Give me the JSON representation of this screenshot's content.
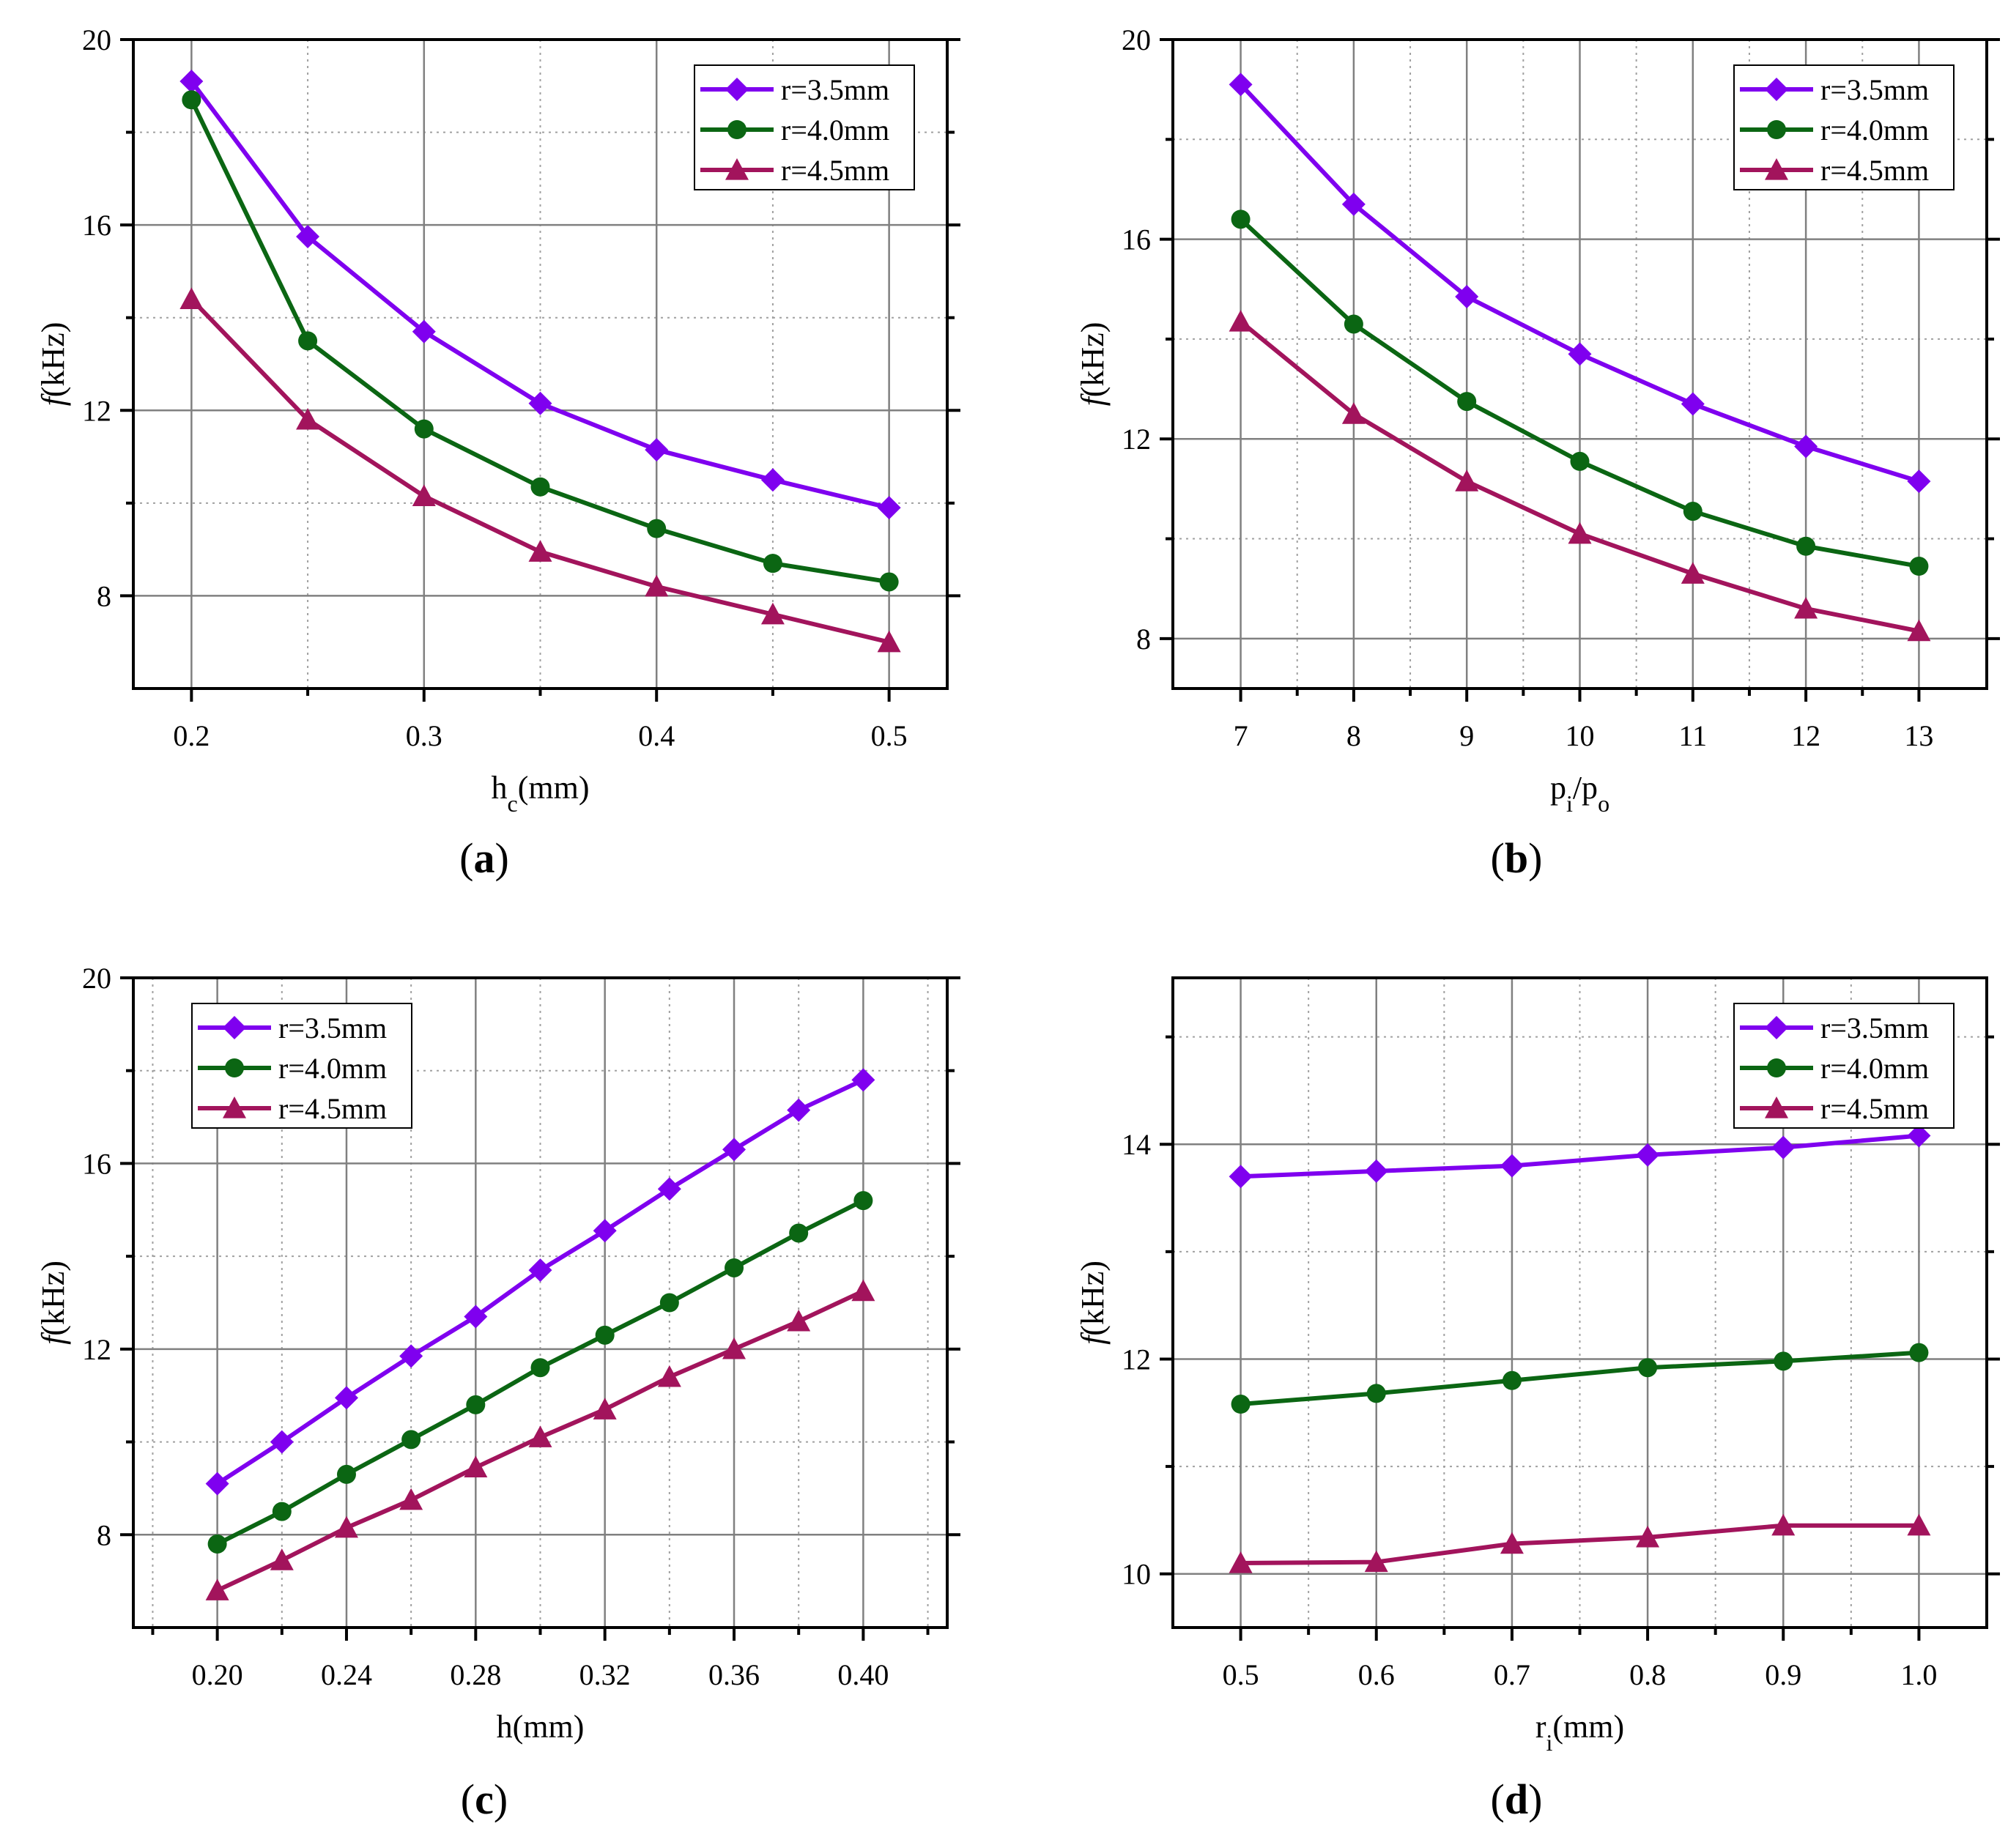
{
  "colors": {
    "r35": "#7f00ef",
    "r40": "#0b6613",
    "r45": "#a2145c",
    "grid": "#808080",
    "minor_grid": "#a0a0a0",
    "axis": "#000000"
  },
  "legend": [
    {
      "label": "r=3.5mm",
      "marker": "diamond",
      "color_key": "r35"
    },
    {
      "label": "r=4.0mm",
      "marker": "circle",
      "color_key": "r40"
    },
    {
      "label": "r=4.5mm",
      "marker": "triangle",
      "color_key": "r45"
    }
  ],
  "chart_data": [
    {
      "id": "a",
      "caption": "a",
      "type": "line",
      "xlabel": "h",
      "xlabel_sub": "c",
      "xlabel_suffix": "(mm)",
      "ylabel_italic": "f",
      "ylabel_rest": "(kHz)",
      "xlim": [
        0.175,
        0.525
      ],
      "ylim": [
        6,
        20
      ],
      "xticks": [
        0.2,
        0.3,
        0.4,
        0.5
      ],
      "xtick_labels": [
        "0.2",
        "0.3",
        "0.4",
        "0.5"
      ],
      "xminor": [
        0.25,
        0.35,
        0.45
      ],
      "yticks": [
        8,
        12,
        16,
        20
      ],
      "ytick_labels": [
        "8",
        "12",
        "16",
        "20"
      ],
      "yminor": [
        10,
        14,
        18
      ],
      "legend_pos": "top-right",
      "x": [
        0.2,
        0.25,
        0.3,
        0.35,
        0.4,
        0.45,
        0.5
      ],
      "series": [
        {
          "name": "r=3.5mm",
          "values": [
            19.1,
            15.75,
            13.7,
            12.15,
            11.15,
            10.5,
            9.9
          ]
        },
        {
          "name": "r=4.0mm",
          "values": [
            18.7,
            13.5,
            11.6,
            10.35,
            9.45,
            8.7,
            8.3
          ]
        },
        {
          "name": "r=4.5mm",
          "values": [
            14.4,
            11.8,
            10.15,
            8.95,
            8.2,
            7.6,
            7.0
          ]
        }
      ]
    },
    {
      "id": "b",
      "caption": "b",
      "type": "line",
      "xlabel": "p",
      "xlabel_sub": "i",
      "xlabel_mid": "/p",
      "xlabel_sub2": "o",
      "ylabel_italic": "f",
      "ylabel_rest": "(kHz)",
      "xlim": [
        6.4,
        13.6
      ],
      "ylim": [
        7,
        20
      ],
      "xticks": [
        7,
        8,
        9,
        10,
        11,
        12,
        13
      ],
      "xtick_labels": [
        "7",
        "8",
        "9",
        "10",
        "11",
        "12",
        "13"
      ],
      "xminor": [
        7.5,
        8.5,
        9.5,
        10.5,
        11.5,
        12.5
      ],
      "yticks": [
        8,
        12,
        16,
        20
      ],
      "ytick_labels": [
        "8",
        "12",
        "16",
        "20"
      ],
      "yminor": [
        10,
        14,
        18
      ],
      "legend_pos": "top-right",
      "x": [
        7,
        8,
        9,
        10,
        11,
        12,
        13
      ],
      "series": [
        {
          "name": "r=3.5mm",
          "values": [
            19.1,
            16.7,
            14.85,
            13.7,
            12.7,
            11.85,
            11.15
          ]
        },
        {
          "name": "r=4.0mm",
          "values": [
            16.4,
            14.3,
            12.75,
            11.55,
            10.55,
            9.85,
            9.45
          ]
        },
        {
          "name": "r=4.5mm",
          "values": [
            14.35,
            12.5,
            11.15,
            10.1,
            9.3,
            8.6,
            8.15
          ]
        }
      ]
    },
    {
      "id": "c",
      "caption": "c",
      "type": "line",
      "xlabel": "h(mm)",
      "ylabel_italic": "f",
      "ylabel_rest": "(kHz)",
      "xlim": [
        0.174,
        0.426
      ],
      "ylim": [
        6,
        20
      ],
      "xticks": [
        0.2,
        0.24,
        0.28,
        0.32,
        0.36,
        0.4
      ],
      "xtick_labels": [
        "0.20",
        "0.24",
        "0.28",
        "0.32",
        "0.36",
        "0.40"
      ],
      "xminor": [
        0.18,
        0.22,
        0.26,
        0.3,
        0.34,
        0.38,
        0.42
      ],
      "yticks": [
        8,
        12,
        16,
        20
      ],
      "ytick_labels": [
        "8",
        "12",
        "16",
        "20"
      ],
      "yminor": [
        10,
        14,
        18
      ],
      "legend_pos": "top-left",
      "x": [
        0.2,
        0.22,
        0.24,
        0.26,
        0.28,
        0.3,
        0.32,
        0.34,
        0.36,
        0.38,
        0.4
      ],
      "series": [
        {
          "name": "r=3.5mm",
          "values": [
            9.1,
            10.0,
            10.95,
            11.85,
            12.7,
            13.7,
            14.55,
            15.45,
            16.3,
            17.15,
            17.8
          ]
        },
        {
          "name": "r=4.0mm",
          "values": [
            7.8,
            8.5,
            9.3,
            10.05,
            10.8,
            11.6,
            12.3,
            13.0,
            13.75,
            14.5,
            15.2
          ]
        },
        {
          "name": "r=4.5mm",
          "values": [
            6.8,
            7.45,
            8.15,
            8.75,
            9.45,
            10.1,
            10.7,
            11.4,
            12.0,
            12.6,
            13.25
          ]
        }
      ]
    },
    {
      "id": "d",
      "caption": "d",
      "type": "line",
      "xlabel": "r",
      "xlabel_sub": "i",
      "xlabel_suffix": "(mm)",
      "ylabel_italic": "f",
      "ylabel_rest": "(kHz)",
      "xlim": [
        0.45,
        1.05
      ],
      "ylim": [
        9.5,
        15.55
      ],
      "xticks": [
        0.5,
        0.6,
        0.7,
        0.8,
        0.9,
        1.0
      ],
      "xtick_labels": [
        "0.5",
        "0.6",
        "0.7",
        "0.8",
        "0.9",
        "1.0"
      ],
      "xminor": [
        0.55,
        0.65,
        0.75,
        0.85,
        0.95
      ],
      "yticks": [
        10,
        12,
        14
      ],
      "ytick_labels": [
        "10",
        "12",
        "14"
      ],
      "yminor": [
        11,
        13,
        15
      ],
      "legend_pos": "top-right",
      "x": [
        0.5,
        0.6,
        0.7,
        0.8,
        0.9,
        1.0
      ],
      "series": [
        {
          "name": "r=3.5mm",
          "values": [
            13.7,
            13.75,
            13.8,
            13.9,
            13.97,
            14.08
          ]
        },
        {
          "name": "r=4.0mm",
          "values": [
            11.58,
            11.68,
            11.8,
            11.92,
            11.98,
            12.06
          ]
        },
        {
          "name": "r=4.5mm",
          "values": [
            10.1,
            10.11,
            10.28,
            10.34,
            10.45,
            10.45
          ]
        }
      ]
    }
  ]
}
